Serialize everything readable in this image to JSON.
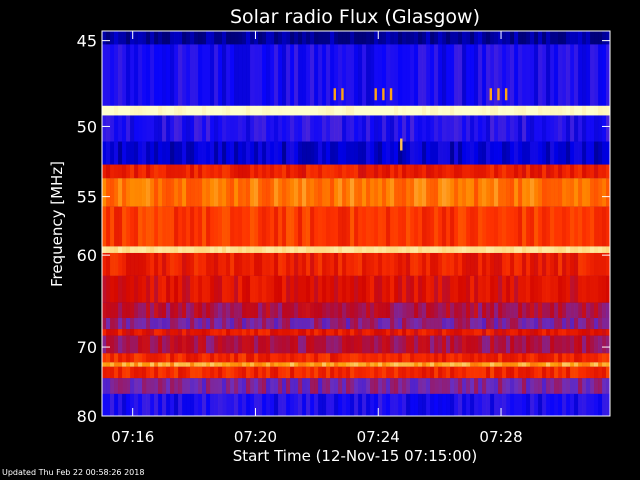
{
  "colors": {
    "background": "#000000",
    "axes": "#ffffff",
    "text": "#ffffff"
  },
  "footer": {
    "updated_text": "Updated Thu Feb 22 00:58:26 2018"
  },
  "chart_data": {
    "type": "heatmap",
    "title": "Solar radio Flux (Glasgow)",
    "xlabel": "Start Time (12-Nov-15 07:15:00)",
    "ylabel": "Frequency [MHz]",
    "xlim": [
      "07:15:00",
      "07:31:33"
    ],
    "ylim": [
      80,
      44.5
    ],
    "x_ticks": [
      "07:16",
      "07:20",
      "07:24",
      "07:28"
    ],
    "y_ticks": [
      45,
      50,
      55,
      60,
      70,
      80
    ],
    "y_scale": "reciprocal",
    "colormap": [
      "#000066",
      "#0000ff",
      "#6633cc",
      "#cc0000",
      "#ff3300",
      "#ff9900",
      "#ffffcc"
    ],
    "value_range": [
      0,
      1
    ],
    "frequency_bands": [
      {
        "from": 44.5,
        "to": 45.2,
        "level": 0.05
      },
      {
        "from": 45.2,
        "to": 48.7,
        "level": 0.2
      },
      {
        "from": 48.7,
        "to": 49.3,
        "level": 1.0
      },
      {
        "from": 49.3,
        "to": 51.0,
        "level": 0.22
      },
      {
        "from": 51.0,
        "to": 52.6,
        "level": 0.12
      },
      {
        "from": 52.6,
        "to": 53.6,
        "level": 0.6
      },
      {
        "from": 53.6,
        "to": 55.8,
        "level": 0.78
      },
      {
        "from": 55.8,
        "to": 59.2,
        "level": 0.66
      },
      {
        "from": 59.2,
        "to": 59.8,
        "level": 0.95
      },
      {
        "from": 59.8,
        "to": 62.0,
        "level": 0.6
      },
      {
        "from": 62.0,
        "to": 64.8,
        "level": 0.55
      },
      {
        "from": 64.8,
        "to": 66.5,
        "level": 0.45
      },
      {
        "from": 66.5,
        "to": 67.8,
        "level": 0.38
      },
      {
        "from": 67.8,
        "to": 68.6,
        "level": 0.58
      },
      {
        "from": 68.6,
        "to": 70.8,
        "level": 0.45
      },
      {
        "from": 70.8,
        "to": 72.0,
        "level": 0.62
      },
      {
        "from": 72.0,
        "to": 72.6,
        "level": 0.85
      },
      {
        "from": 72.6,
        "to": 74.2,
        "level": 0.62
      },
      {
        "from": 74.2,
        "to": 76.5,
        "level": 0.36
      },
      {
        "from": 76.5,
        "to": 80.0,
        "level": 0.2
      }
    ],
    "bursts": [
      {
        "time": "07:22:35",
        "frequency": 48.0,
        "level": 0.85
      },
      {
        "time": "07:22:50",
        "frequency": 48.0,
        "level": 0.85
      },
      {
        "time": "07:23:55",
        "frequency": 48.0,
        "level": 0.85
      },
      {
        "time": "07:24:10",
        "frequency": 48.0,
        "level": 0.85
      },
      {
        "time": "07:24:25",
        "frequency": 48.0,
        "level": 0.85
      },
      {
        "time": "07:24:45",
        "frequency": 51.2,
        "level": 0.9
      },
      {
        "time": "07:27:40",
        "frequency": 48.0,
        "level": 0.85
      },
      {
        "time": "07:27:55",
        "frequency": 48.0,
        "level": 0.85
      },
      {
        "time": "07:28:10",
        "frequency": 48.0,
        "level": 0.85
      }
    ]
  }
}
